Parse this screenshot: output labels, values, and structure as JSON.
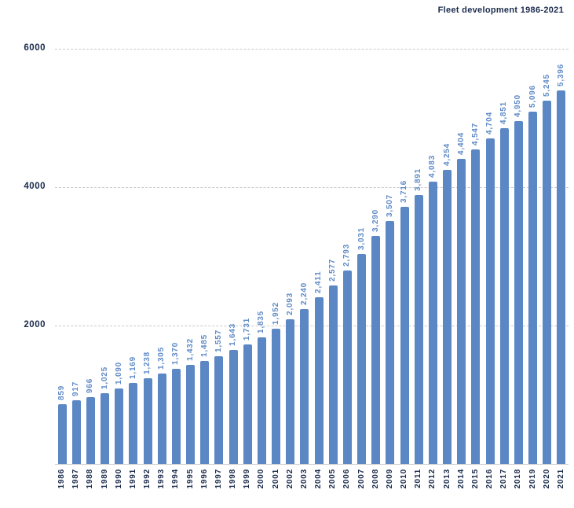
{
  "title": "Fleet development 1986-2021",
  "colors": {
    "bar": "#5b87c5",
    "value_label": "#5f8bc7",
    "axis_label": "#1b2b4c",
    "title": "#1b2b4c",
    "gridline": "#c9c9c9"
  },
  "chart_data": {
    "type": "bar",
    "title": "Fleet development 1986-2021",
    "categories": [
      "1986",
      "1987",
      "1988",
      "1989",
      "1990",
      "1991",
      "1992",
      "1993",
      "1994",
      "1995",
      "1996",
      "1997",
      "1998",
      "1999",
      "2000",
      "2001",
      "2002",
      "2003",
      "2004",
      "2005",
      "2006",
      "2007",
      "2008",
      "2009",
      "2010",
      "2011",
      "2012",
      "2013",
      "2014",
      "2015",
      "2016",
      "2017",
      "2018",
      "2019",
      "2020",
      "2021"
    ],
    "values": [
      859,
      917,
      966,
      1025,
      1090,
      1169,
      1238,
      1305,
      1370,
      1432,
      1485,
      1557,
      1643,
      1731,
      1835,
      1952,
      2093,
      2240,
      2411,
      2577,
      2793,
      3031,
      3290,
      3507,
      3716,
      3891,
      4083,
      4254,
      4404,
      4547,
      4704,
      4851,
      4950,
      5096,
      5245,
      5396
    ],
    "value_labels": [
      "859",
      "917",
      "966",
      "1,025",
      "1,090",
      "1,169",
      "1,238",
      "1,305",
      "1,370",
      "1,432",
      "1,485",
      "1,557",
      "1,643",
      "1,731",
      "1,835",
      "1,952",
      "2,093",
      "2,240",
      "2,411",
      "2,577",
      "2,793",
      "3,031",
      "3,290",
      "3,507",
      "3,716",
      "3,891",
      "4,083",
      "4,254",
      "4,404",
      "4,547",
      "4,704",
      "4,851",
      "4,950",
      "5,096",
      "5,245",
      "5,396"
    ],
    "xlabel": "",
    "ylabel": "",
    "ylim": [
      0,
      6000
    ],
    "yticks": [
      2000,
      4000,
      6000
    ],
    "ytick_labels": [
      "2000",
      "4000",
      "6000"
    ],
    "grid": "horizontal-dashed",
    "legend": "none",
    "bar_color": "#5b87c5",
    "value_labels_rotated": true,
    "category_labels_rotated": true
  }
}
